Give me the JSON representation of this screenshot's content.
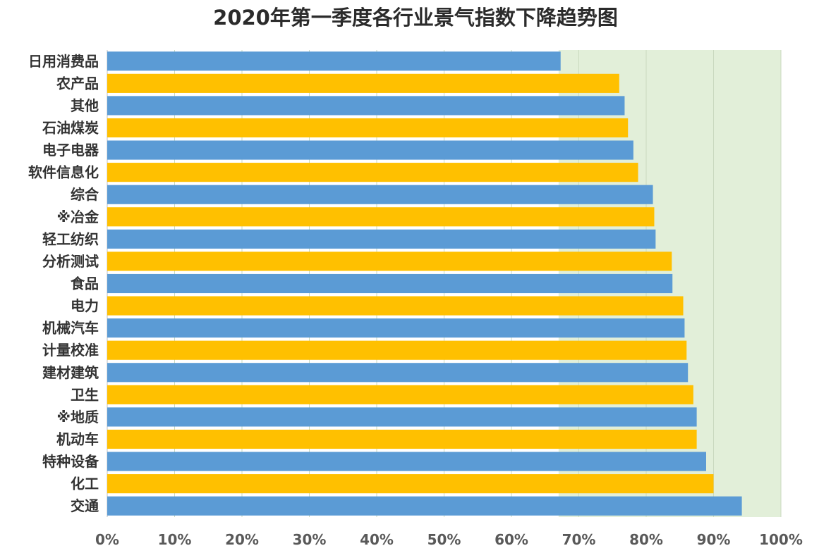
{
  "chart_data": {
    "type": "bar",
    "orientation": "horizontal",
    "title": "2020年第一季度各行业景气指数下降趋势图",
    "categories": [
      "日用消费品",
      "农产品",
      "其他",
      "石油煤炭",
      "电子电器",
      "软件信息化",
      "综合",
      "※冶金",
      "轻工纺织",
      "分析测试",
      "食品",
      "电力",
      "机械汽车",
      "计量校准",
      "建材建筑",
      "卫生",
      "※地质",
      "机动车",
      "特种设备",
      "化工",
      "交通"
    ],
    "values": [
      67.3,
      76.0,
      76.8,
      77.3,
      78.1,
      78.8,
      81.0,
      81.2,
      81.4,
      83.8,
      83.9,
      85.5,
      85.7,
      86.0,
      86.2,
      87.0,
      87.5,
      87.5,
      88.9,
      90.0,
      94.2
    ],
    "xlim": [
      0,
      100
    ],
    "x_ticks": [
      "0%",
      "10%",
      "20%",
      "30%",
      "40%",
      "50%",
      "60%",
      "70%",
      "80%",
      "90%",
      "100%"
    ],
    "bar_colors": [
      "#5b9bd5",
      "#ffc000"
    ],
    "background_band_color": "#e2efd9",
    "grid": true
  }
}
